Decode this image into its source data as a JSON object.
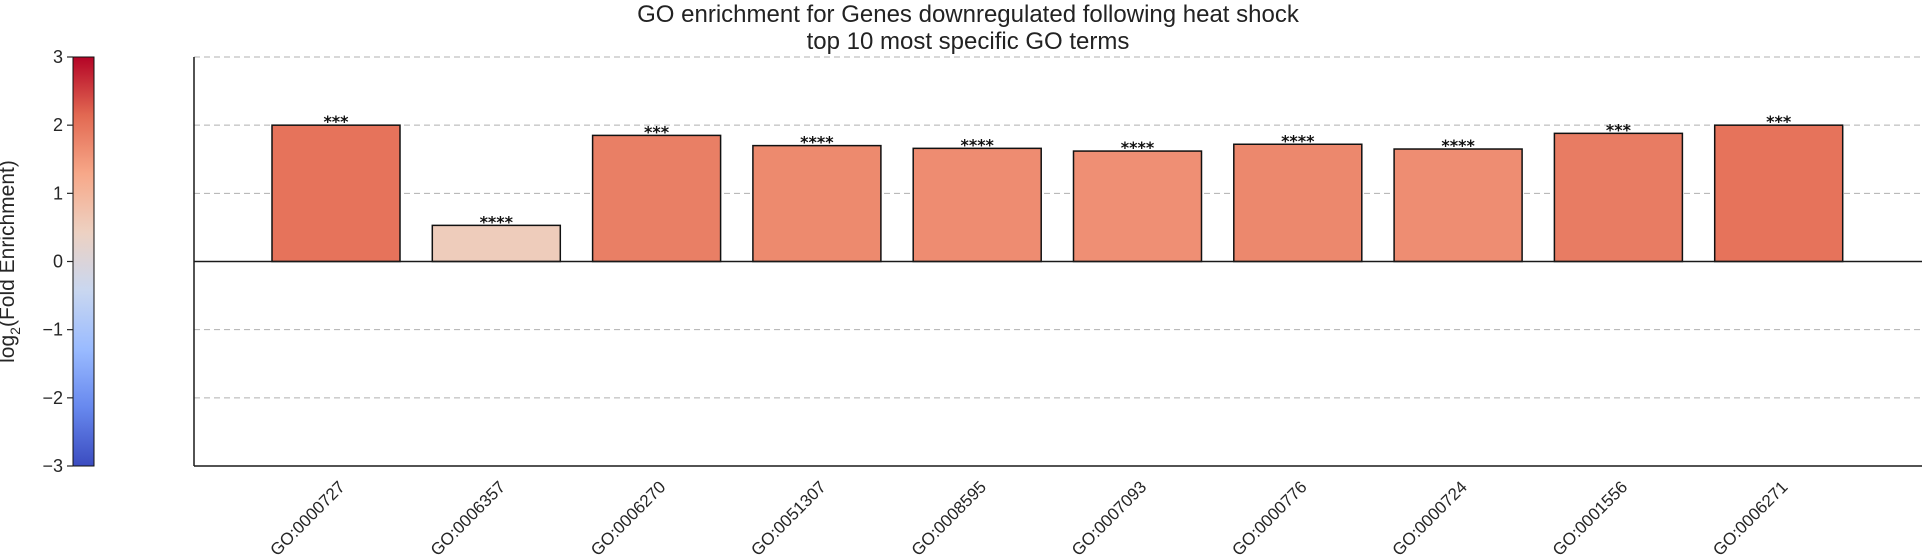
{
  "chart_data": {
    "type": "bar",
    "title": [
      "GO enrichment for Genes downregulated following heat shock",
      "top 10 most specific GO terms"
    ],
    "categories": [
      "GO:0000727",
      "GO:0006357",
      "GO:0006270",
      "GO:0051307",
      "GO:0008595",
      "GO:0007093",
      "GO:0000776",
      "GO:0000724",
      "GO:0001556",
      "GO:0006271"
    ],
    "values": [
      2.0,
      0.53,
      1.85,
      1.7,
      1.66,
      1.62,
      1.72,
      1.65,
      1.88,
      2.0
    ],
    "significance": [
      "***",
      "****",
      "***",
      "****",
      "****",
      "****",
      "****",
      "****",
      "***",
      "***"
    ],
    "ylim": [
      -3,
      3
    ],
    "yticks": [
      "3",
      "2",
      "1",
      "0",
      "−1",
      "−2",
      "−3"
    ],
    "ytick_values": [
      3,
      2,
      1,
      0,
      -1,
      -2,
      -3
    ],
    "colorbar": {
      "label_prefix": "log",
      "label_sub": "2",
      "label_suffix": "(Fold Enrichment)",
      "range": [
        -3,
        3
      ],
      "colormap": "coolwarm",
      "colors": [
        "#3b4cc0",
        "#6788ee",
        "#9abbff",
        "#c9d7f0",
        "#edd1c2",
        "#f7a889",
        "#e26952",
        "#b40426"
      ]
    },
    "grid": true,
    "grid_style": "dashed"
  }
}
